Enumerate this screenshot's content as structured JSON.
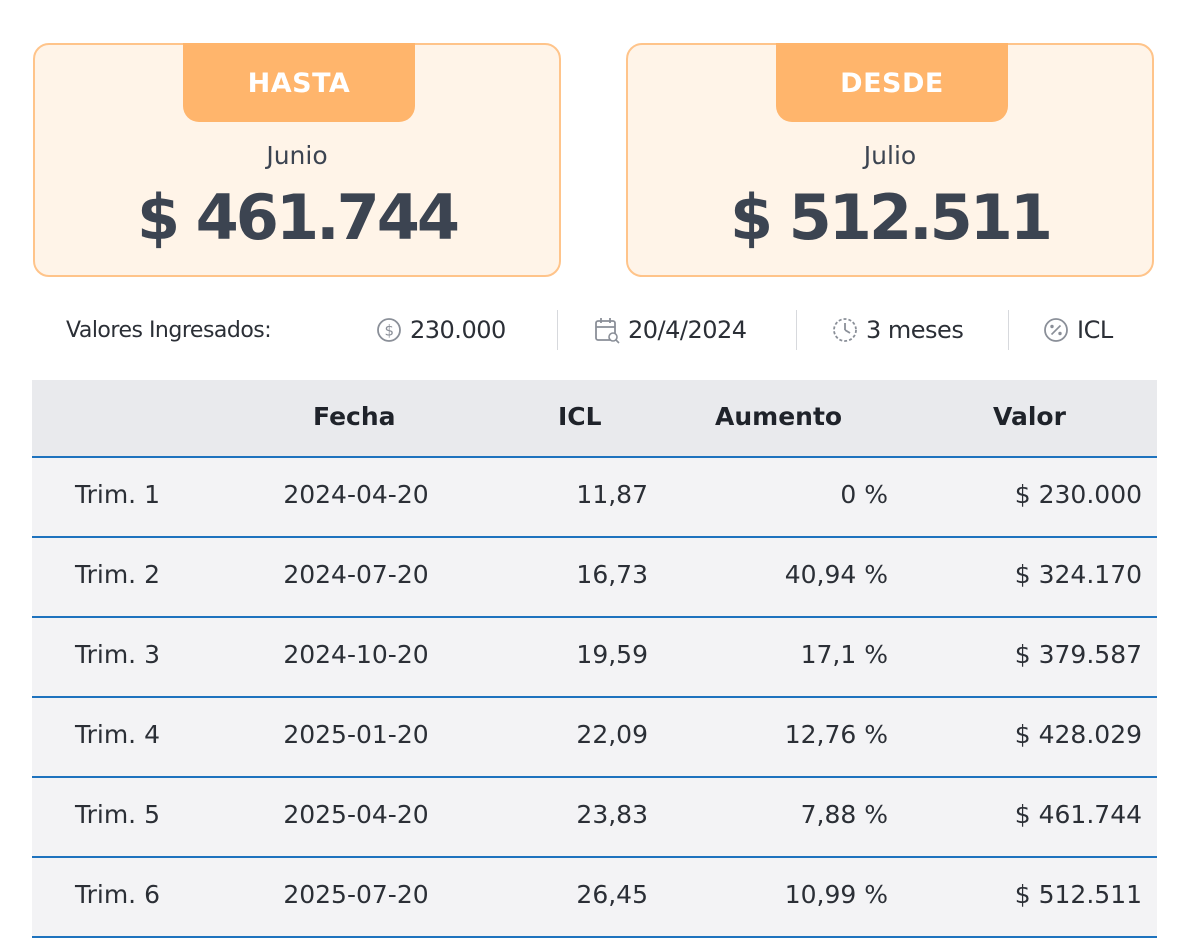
{
  "cards": {
    "hasta": {
      "tab": "HASTA",
      "month": "Junio",
      "amount": "$ 461.744"
    },
    "desde": {
      "tab": "DESDE",
      "month": "Julio",
      "amount": "$ 512.511"
    }
  },
  "info": {
    "label": "Valores Ingresados:",
    "amount": {
      "icon": "dollar-circle-icon",
      "value": "230.000"
    },
    "date": {
      "icon": "calendar-icon",
      "value": "20/4/2024"
    },
    "period": {
      "icon": "clock-icon",
      "value": "3 meses"
    },
    "index": {
      "icon": "percent-circle-icon",
      "value": "ICL"
    }
  },
  "table": {
    "headers": [
      "",
      "Fecha",
      "ICL",
      "Aumento",
      "Valor"
    ],
    "rows": [
      [
        "Trim. 1",
        "2024-04-20",
        "11,87",
        "0 %",
        "$ 230.000"
      ],
      [
        "Trim. 2",
        "2024-07-20",
        "16,73",
        "40,94 %",
        "$ 324.170"
      ],
      [
        "Trim. 3",
        "2024-10-20",
        "19,59",
        "17,1 %",
        "$ 379.587"
      ],
      [
        "Trim. 4",
        "2025-01-20",
        "22,09",
        "12,76 %",
        "$ 428.029"
      ],
      [
        "Trim. 5",
        "2025-04-20",
        "23,83",
        "7,88 %",
        "$ 461.744"
      ],
      [
        "Trim. 6",
        "2025-07-20",
        "26,45",
        "10,99 %",
        "$ 512.511"
      ]
    ]
  },
  "colors": {
    "card_border": "#ffc48a",
    "card_bg": "#fff4e8",
    "tab_bg": "#ffb56c",
    "row_divider": "#1e73be",
    "header_bg": "#e9eaed"
  }
}
